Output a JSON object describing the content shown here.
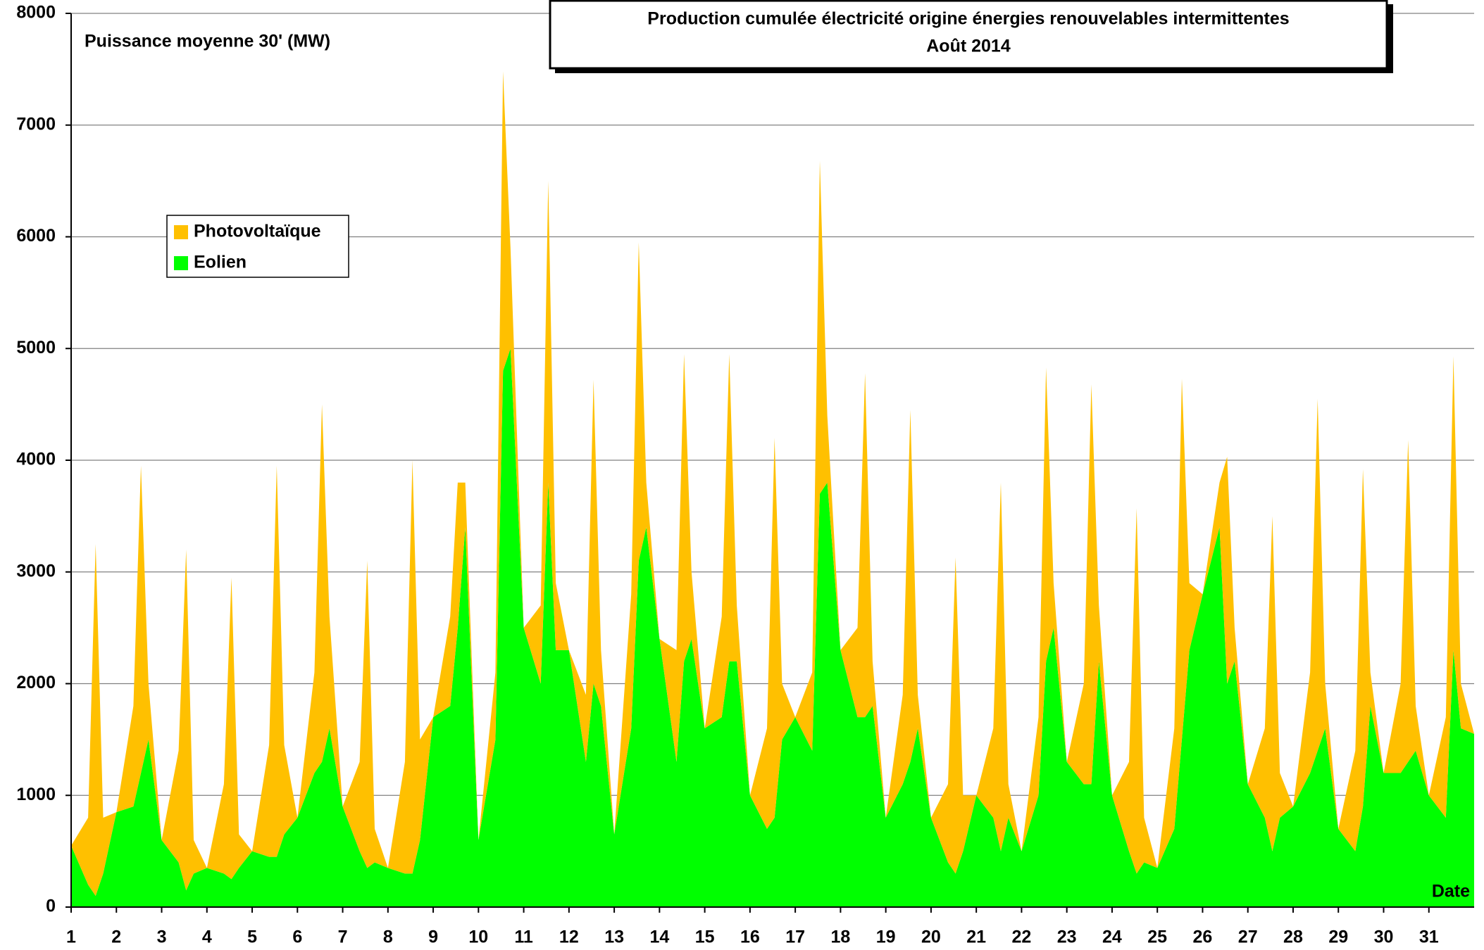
{
  "chart_data": {
    "type": "stacked_area",
    "title": "Production cumulée électricité origine énergies renouvelables intermittentes",
    "subtitle": "Août 2014",
    "y_label": "Puissance moyenne 30' (MW)",
    "x_label": "Date",
    "xlim": [
      1,
      32
    ],
    "ylim": [
      0,
      8000
    ],
    "yticks": [
      0,
      1000,
      2000,
      3000,
      4000,
      5000,
      6000,
      7000,
      8000
    ],
    "xticks": [
      1,
      2,
      3,
      4,
      5,
      6,
      7,
      8,
      9,
      10,
      11,
      12,
      13,
      14,
      15,
      16,
      17,
      18,
      19,
      20,
      21,
      22,
      23,
      24,
      25,
      26,
      27,
      28,
      29,
      30,
      31
    ],
    "grid": true,
    "legend": "upper left",
    "x": [
      1,
      1.375,
      1.542,
      1.708,
      2,
      2.375,
      2.542,
      2.708,
      3,
      3.375,
      3.542,
      3.708,
      4,
      4.375,
      4.542,
      4.708,
      5,
      5.375,
      5.542,
      5.708,
      6,
      6.375,
      6.542,
      6.708,
      7,
      7.375,
      7.542,
      7.708,
      8,
      8.375,
      8.542,
      8.708,
      9,
      9.375,
      9.542,
      9.708,
      10,
      10.375,
      10.542,
      10.708,
      11,
      11.375,
      11.542,
      11.708,
      12,
      12.375,
      12.542,
      12.708,
      13,
      13.375,
      13.542,
      13.708,
      14,
      14.375,
      14.542,
      14.708,
      15,
      15.375,
      15.542,
      15.708,
      16,
      16.375,
      16.542,
      16.708,
      17,
      17.375,
      17.542,
      17.708,
      18,
      18.375,
      18.542,
      18.708,
      19,
      19.375,
      19.542,
      19.708,
      20,
      20.375,
      20.542,
      20.708,
      21,
      21.375,
      21.542,
      21.708,
      22,
      22.375,
      22.542,
      22.708,
      23,
      23.375,
      23.542,
      23.708,
      24,
      24.375,
      24.542,
      24.708,
      25,
      25.375,
      25.542,
      25.708,
      26,
      26.375,
      26.542,
      26.708,
      27,
      27.375,
      27.542,
      27.708,
      28,
      28.375,
      28.542,
      28.708,
      29,
      29.375,
      29.542,
      29.708,
      30,
      30.375,
      30.542,
      30.708,
      31,
      31.375,
      31.542,
      31.708,
      32
    ],
    "series": [
      {
        "name": "Photovoltaïque",
        "color": "#FFC000",
        "values": [
          0,
          600,
          3150,
          500,
          0,
          900,
          2750,
          500,
          0,
          1000,
          3050,
          300,
          0,
          800,
          2700,
          300,
          0,
          1000,
          3500,
          800,
          0,
          900,
          3200,
          1000,
          0,
          800,
          2750,
          300,
          0,
          1000,
          3700,
          900,
          0,
          800,
          1300,
          400,
          0,
          600,
          2680,
          900,
          0,
          700,
          2700,
          600,
          0,
          600,
          2720,
          500,
          0,
          1200,
          2850,
          400,
          0,
          1000,
          2750,
          600,
          0,
          900,
          2750,
          500,
          0,
          900,
          3400,
          500,
          0,
          700,
          2980,
          600,
          0,
          800,
          3080,
          400,
          0,
          800,
          3150,
          300,
          0,
          700,
          2830,
          500,
          0,
          800,
          3300,
          300,
          0,
          700,
          2630,
          400,
          0,
          900,
          3580,
          500,
          0,
          800,
          3270,
          400,
          0,
          900,
          3230,
          600,
          0,
          400,
          2030,
          300,
          0,
          800,
          3000,
          400,
          0,
          900,
          3150,
          400,
          0,
          900,
          3020,
          300,
          0,
          800,
          2880,
          400,
          0,
          900,
          2630,
          400,
          0
        ]
      },
      {
        "name": "Eolien",
        "color": "#00FF00",
        "values": [
          550,
          200,
          100,
          300,
          850,
          900,
          1200,
          1500,
          600,
          400,
          150,
          300,
          350,
          300,
          250,
          350,
          500,
          450,
          450,
          650,
          800,
          1200,
          1300,
          1600,
          900,
          500,
          350,
          400,
          350,
          300,
          300,
          600,
          1700,
          1800,
          2500,
          3400,
          600,
          1500,
          4800,
          5000,
          2500,
          2000,
          3800,
          2300,
          2300,
          1300,
          2000,
          1800,
          650,
          1600,
          3100,
          3400,
          2400,
          1300,
          2200,
          2400,
          1600,
          1700,
          2200,
          2200,
          1000,
          700,
          800,
          1500,
          1700,
          1400,
          3700,
          3800,
          2300,
          1700,
          1700,
          1800,
          800,
          1100,
          1300,
          1600,
          800,
          400,
          300,
          500,
          1000,
          800,
          500,
          800,
          500,
          1000,
          2200,
          2500,
          1300,
          1100,
          1100,
          2200,
          1000,
          500,
          300,
          400,
          350,
          700,
          1500,
          2300,
          2800,
          3400,
          2000,
          2200,
          1100,
          800,
          500,
          800,
          900,
          1200,
          1400,
          1600,
          700,
          500,
          900,
          1800,
          1200,
          1200,
          1300,
          1400,
          1000,
          800,
          2300,
          1600,
          1550
        ]
      }
    ]
  }
}
